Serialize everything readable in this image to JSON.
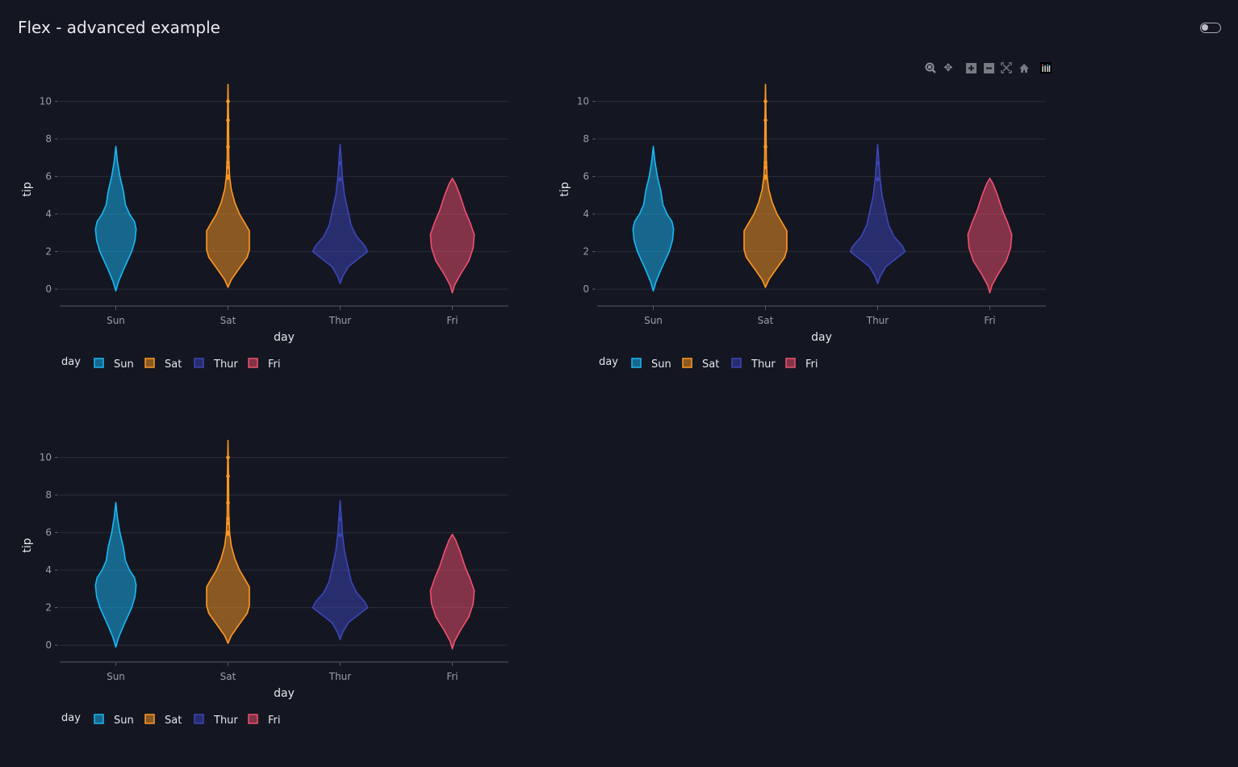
{
  "page": {
    "title": "Flex - advanced example"
  },
  "theme_toggle": {
    "state": "off"
  },
  "modebar": {
    "icons": [
      "zoom-icon",
      "pan-icon",
      "zoom-in-icon",
      "zoom-out-icon",
      "autoscale-icon",
      "reset-axes-icon",
      "plotly-logo-icon"
    ]
  },
  "colors": {
    "Sun": "#1ab8f5",
    "Sat": "#ff9922",
    "Thur": "#3b46b8",
    "Fri": "#f0506e",
    "background": "#141722",
    "grid": "#2a2e3a"
  },
  "chart_data": [
    {
      "type": "violin",
      "xlabel": "day",
      "ylabel": "tip",
      "categories": [
        "Sun",
        "Sat",
        "Thur",
        "Fri"
      ],
      "yticks": [
        0,
        2,
        4,
        6,
        8,
        10
      ],
      "ylim": [
        -0.9,
        11.1
      ],
      "grid": true,
      "legend": {
        "title": "day",
        "placement": "bottom-left",
        "entries": [
          "Sun",
          "Sat",
          "Thur",
          "Fri"
        ]
      },
      "series": [
        {
          "name": "Sun",
          "density": [
            [
              -0.1,
              0
            ],
            [
              0.4,
              0.1
            ],
            [
              1,
              0.27
            ],
            [
              2,
              0.58
            ],
            [
              2.6,
              0.7
            ],
            [
              3.2,
              0.74
            ],
            [
              3.6,
              0.68
            ],
            [
              4,
              0.5
            ],
            [
              4.5,
              0.35
            ],
            [
              5.2,
              0.28
            ],
            [
              6,
              0.15
            ],
            [
              6.8,
              0.06
            ],
            [
              7.6,
              0
            ]
          ]
        },
        {
          "name": "Sat",
          "density": [
            [
              0.1,
              0
            ],
            [
              0.5,
              0.12
            ],
            [
              1,
              0.36
            ],
            [
              1.7,
              0.7
            ],
            [
              2.1,
              0.78
            ],
            [
              3.1,
              0.78
            ],
            [
              3.5,
              0.62
            ],
            [
              4,
              0.42
            ],
            [
              4.6,
              0.25
            ],
            [
              5.3,
              0.12
            ],
            [
              6,
              0.06
            ],
            [
              7,
              0.03
            ],
            [
              9,
              0.02
            ],
            [
              10.9,
              0
            ]
          ],
          "points": [
            10,
            9,
            7.58,
            6.73,
            6.5,
            6,
            5.92
          ]
        },
        {
          "name": "Thur",
          "density": [
            [
              0.3,
              0
            ],
            [
              0.7,
              0.1
            ],
            [
              1.2,
              0.3
            ],
            [
              1.6,
              0.65
            ],
            [
              2,
              1.0
            ],
            [
              2.3,
              0.9
            ],
            [
              2.8,
              0.6
            ],
            [
              3.4,
              0.4
            ],
            [
              4.2,
              0.28
            ],
            [
              5,
              0.16
            ],
            [
              6,
              0.08
            ],
            [
              6.7,
              0.05
            ],
            [
              7.7,
              0
            ]
          ],
          "points": [
            6.7,
            5.85
          ]
        },
        {
          "name": "Fri",
          "density": [
            [
              -0.2,
              0
            ],
            [
              0.2,
              0.08
            ],
            [
              0.8,
              0.3
            ],
            [
              1.5,
              0.6
            ],
            [
              2.2,
              0.76
            ],
            [
              2.9,
              0.8
            ],
            [
              3.5,
              0.66
            ],
            [
              4.2,
              0.46
            ],
            [
              5,
              0.28
            ],
            [
              5.6,
              0.12
            ],
            [
              5.9,
              0
            ]
          ]
        }
      ]
    }
  ],
  "charts": [
    {
      "xlabel": "day",
      "ylabel": "tip",
      "legend_title": "day",
      "legend": [
        "Sun",
        "Sat",
        "Thur",
        "Fri"
      ],
      "ticks": [
        "Sun",
        "Sat",
        "Thur",
        "Fri"
      ],
      "yticks": [
        "0",
        "2",
        "4",
        "6",
        "8",
        "10"
      ]
    },
    {
      "xlabel": "day",
      "ylabel": "tip",
      "legend_title": "day",
      "legend": [
        "Sun",
        "Sat",
        "Thur",
        "Fri"
      ],
      "ticks": [
        "Sun",
        "Sat",
        "Thur",
        "Fri"
      ],
      "yticks": [
        "0",
        "2",
        "4",
        "6",
        "8",
        "10"
      ]
    },
    {
      "xlabel": "day",
      "ylabel": "tip",
      "legend_title": "day",
      "legend": [
        "Sun",
        "Sat",
        "Thur",
        "Fri"
      ],
      "ticks": [
        "Sun",
        "Sat",
        "Thur",
        "Fri"
      ],
      "yticks": [
        "0",
        "2",
        "4",
        "6",
        "8",
        "10"
      ]
    }
  ]
}
